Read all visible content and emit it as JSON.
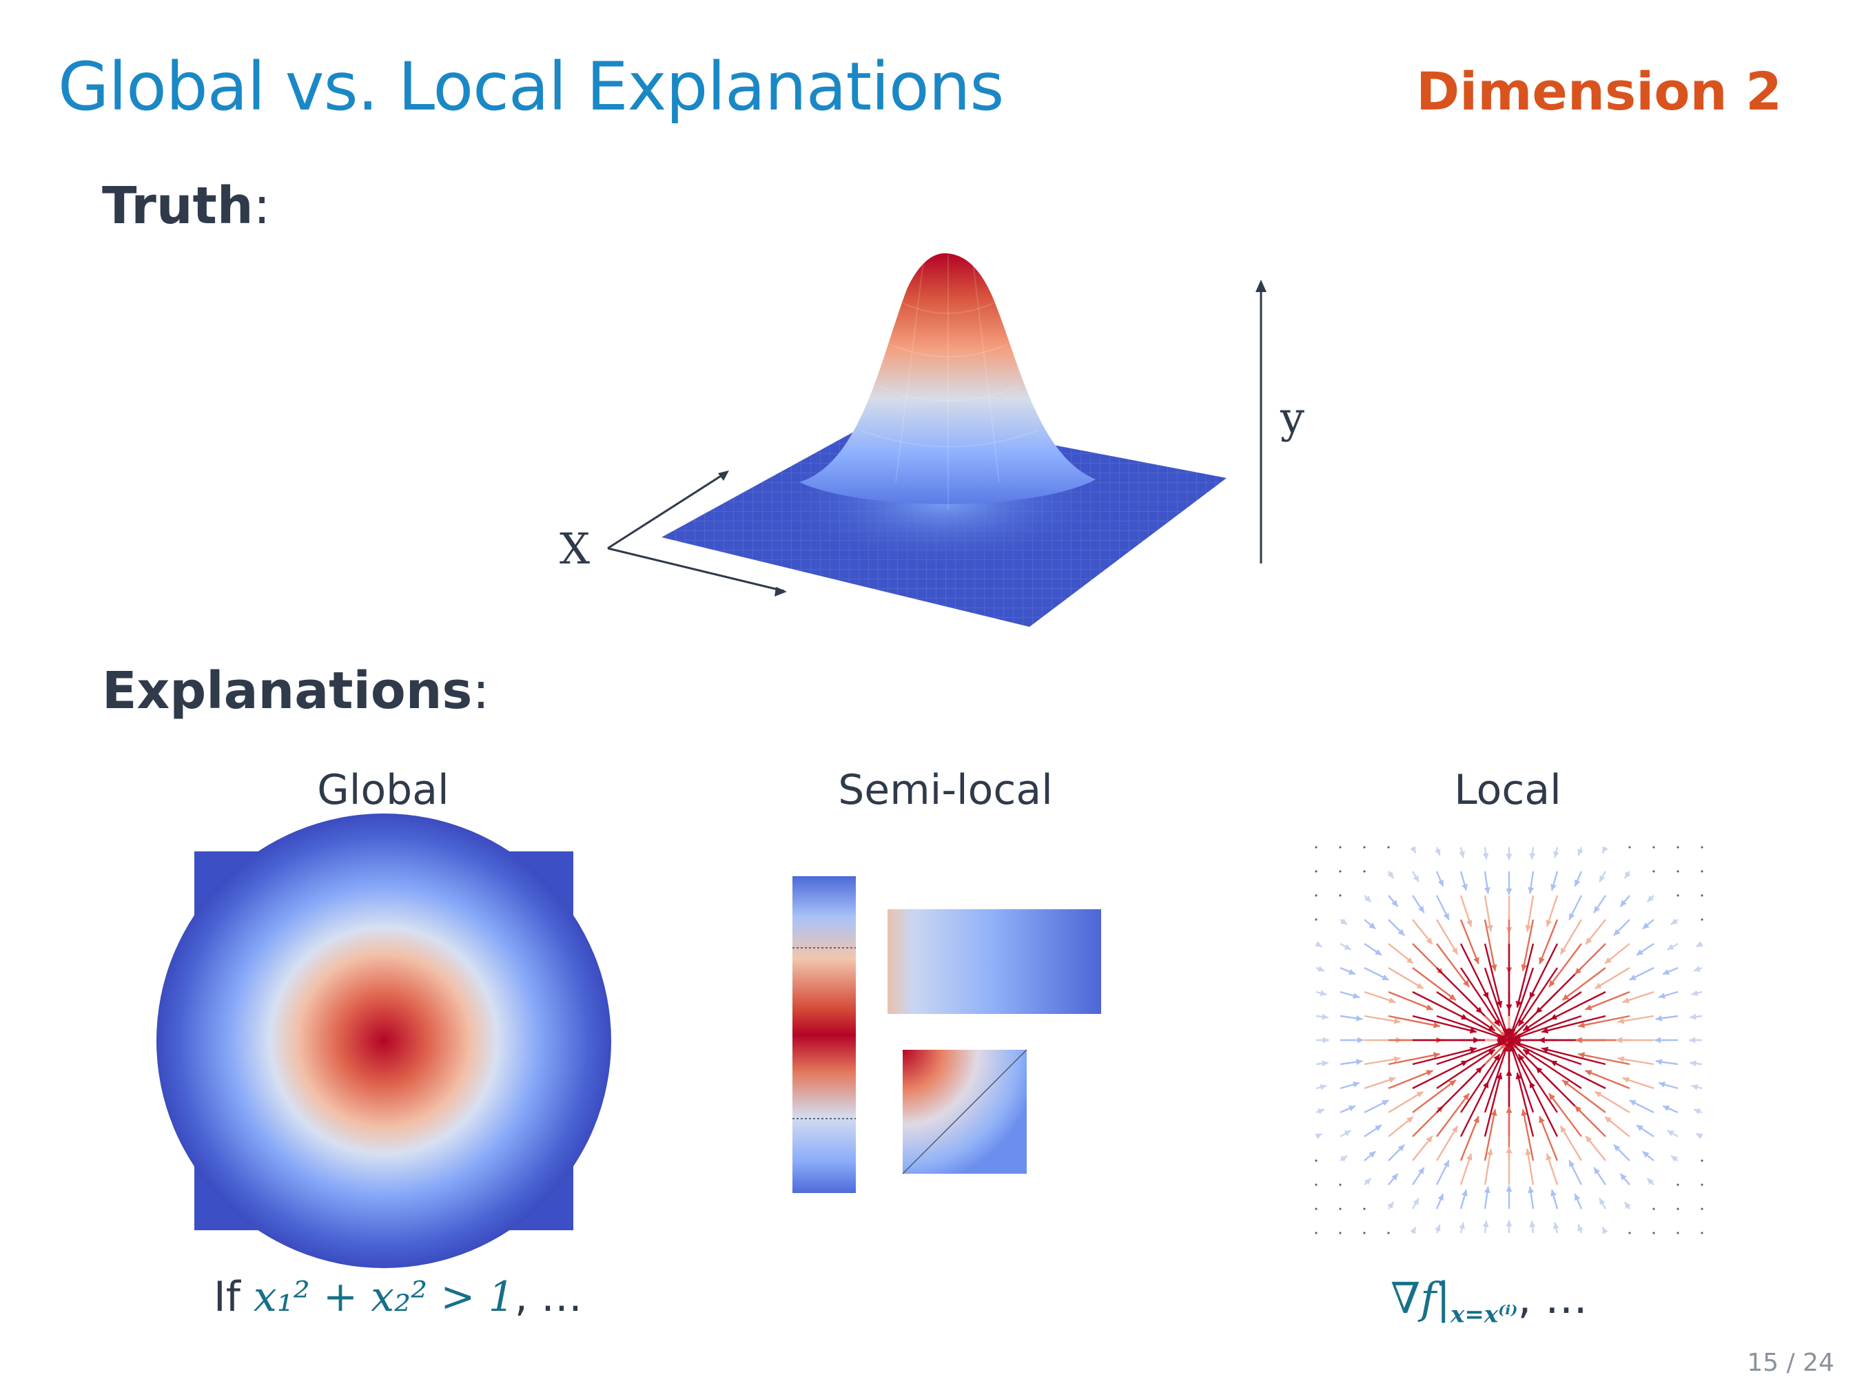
{
  "header": {
    "title": "Global vs. Local Explanations",
    "dimension_label": "Dimension 2"
  },
  "sections": {
    "truth_label": "Truth",
    "truth_colon": ":",
    "explanations_label": "Explanations",
    "explanations_colon": ":"
  },
  "surface_plot": {
    "x_axis_label": "X",
    "y_axis_label": "y",
    "colormap": [
      "#3b4cc0",
      "#8db0fe",
      "#dddddd",
      "#f49a7b",
      "#b40426"
    ]
  },
  "columns": {
    "global": "Global",
    "semi_local": "Semi-local",
    "local": "Local"
  },
  "formulas": {
    "global_prefix": "If",
    "global_lhs": "x₁² + x₂² > 1",
    "global_suffix": ", …",
    "local_expr": "∇f|",
    "local_sub": "x=x⁽ⁱ⁾",
    "local_suffix": ", …"
  },
  "footer": {
    "page": "15 / 24"
  }
}
